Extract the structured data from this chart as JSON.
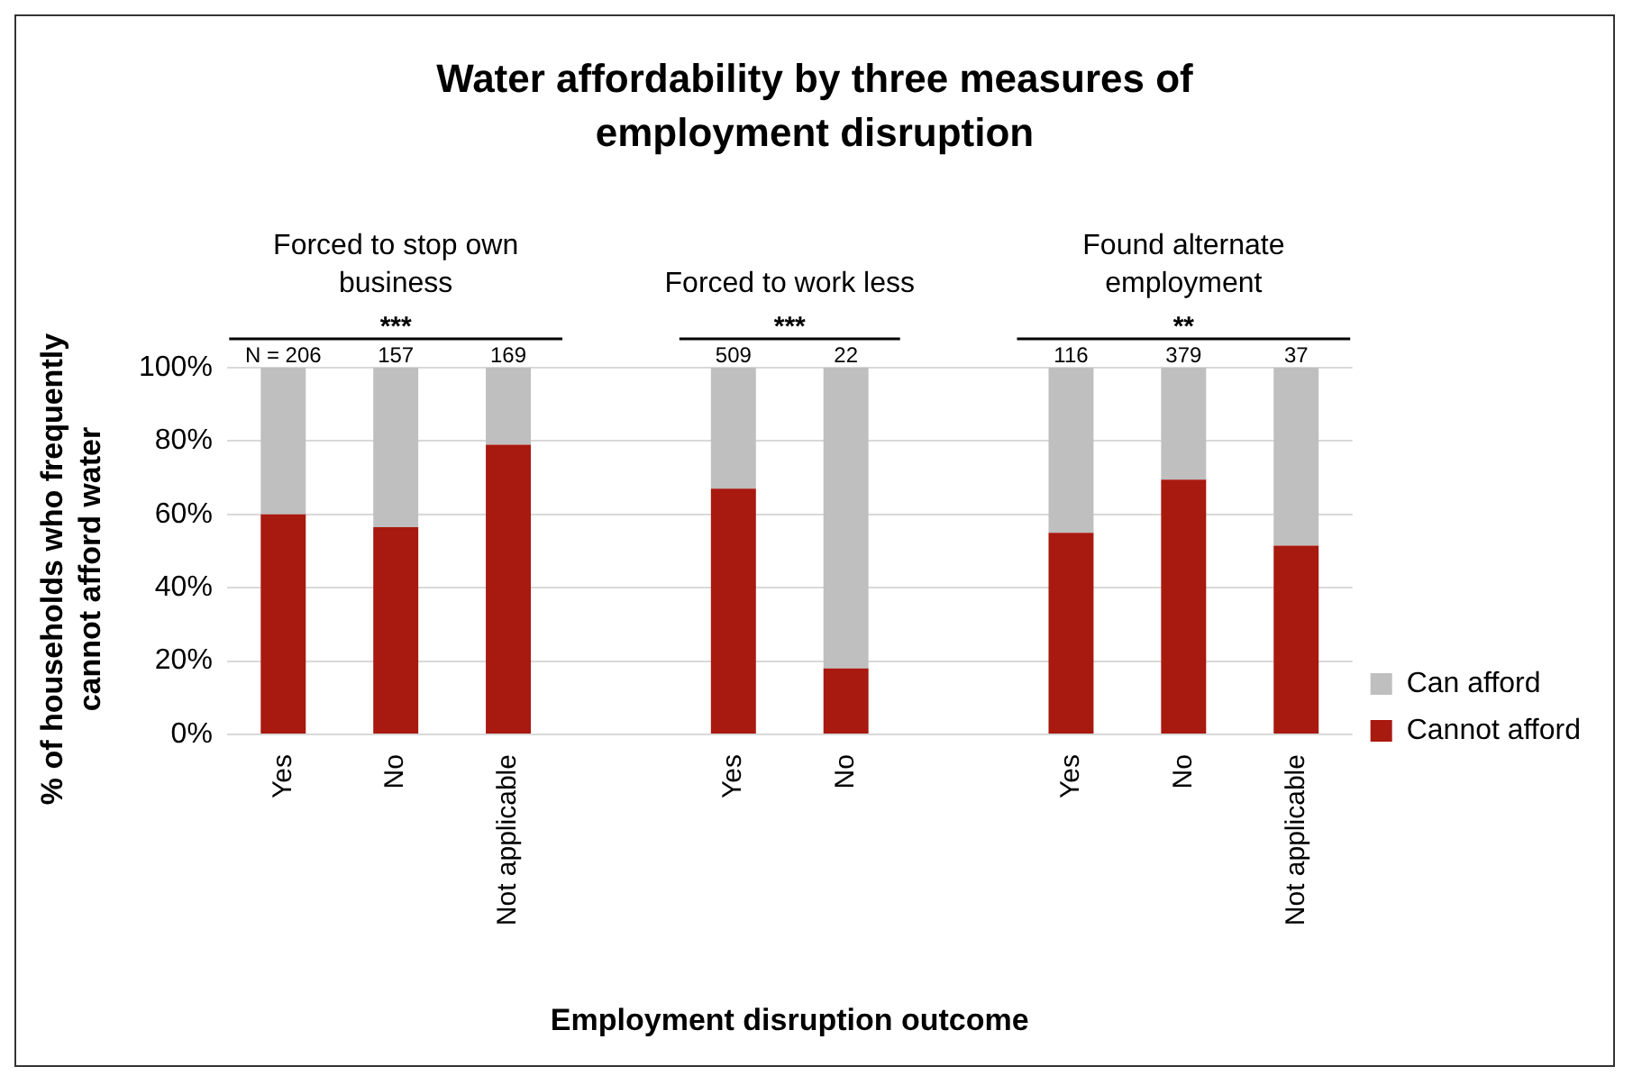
{
  "chart_data": {
    "type": "bar",
    "title": "Water affordability by three measures of employment disruption",
    "xlabel": "Employment disruption outcome",
    "ylabel": "% of households who frequently cannot afford water",
    "categories": [
      "Yes",
      "No",
      "Not applicable",
      null,
      "Yes",
      "No",
      null,
      "Yes",
      "No",
      "Not applicable"
    ],
    "series": [
      {
        "name": "Cannot afford",
        "color": "#a8190f",
        "values": [
          60,
          56.5,
          79,
          null,
          67,
          18,
          null,
          55,
          69.5,
          51.5
        ]
      },
      {
        "name": "Can afford",
        "color": "#bfbfbf",
        "values": [
          40,
          43.5,
          21,
          null,
          33,
          82,
          null,
          45,
          30.5,
          48.5
        ]
      }
    ],
    "stacked": true,
    "ylim": [
      0,
      100
    ],
    "yticks": [
      {
        "value": 0,
        "label": "0%"
      },
      {
        "value": 20,
        "label": "20%"
      },
      {
        "value": 40,
        "label": "40%"
      },
      {
        "value": 60,
        "label": "60%"
      },
      {
        "value": 80,
        "label": "80%"
      },
      {
        "value": 100,
        "label": "100%"
      }
    ],
    "grid": "y",
    "legend": "right",
    "annotations": [
      "Forced to stop own business",
      "Forced to work less",
      "Found alternate employment",
      "***",
      "***",
      "**",
      "N = 206",
      "157",
      "169",
      "509",
      "22",
      "116",
      "379",
      "37"
    ]
  }
}
